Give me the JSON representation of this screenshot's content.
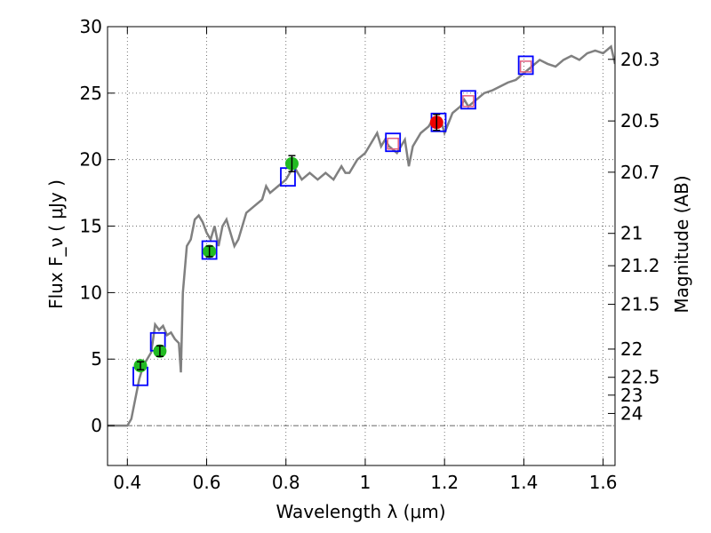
{
  "chart_data": {
    "type": "line",
    "xlabel": "Wavelength  λ (μm)",
    "ylabel": "Flux  F_ν  ( μJy )",
    "y2label": "Magnitude (AB)",
    "xlim": [
      0.35,
      1.63
    ],
    "ylim": [
      -3,
      30
    ],
    "x_ticks": [
      0.4,
      0.6,
      0.8,
      1.0,
      1.2,
      1.4,
      1.6
    ],
    "x_tick_labels": [
      "0.4",
      "0.6",
      "0.8",
      "1",
      "1.2",
      "1.4",
      "1.6"
    ],
    "y_ticks": [
      0,
      5,
      10,
      15,
      20,
      25,
      30
    ],
    "y_tick_labels": [
      "0",
      "5",
      "10",
      "15",
      "20",
      "25",
      "30"
    ],
    "y2_tick_labels": [
      "20.3",
      "20.5",
      "20.7",
      "21",
      "21.2",
      "21.5",
      "22",
      "22.5",
      "23",
      "24"
    ],
    "grid": true,
    "colors": {
      "sed": "#808080",
      "model_box": "#0000ff",
      "green": "#22bb22",
      "red": "#ee0000",
      "pink": "#e06080"
    },
    "series": [
      {
        "type": "line",
        "x": [
          0.35,
          0.38,
          0.4,
          0.41,
          0.42,
          0.43,
          0.44,
          0.45,
          0.46,
          0.465,
          0.47,
          0.48,
          0.49,
          0.5,
          0.51,
          0.52,
          0.53,
          0.535,
          0.54,
          0.55,
          0.56,
          0.57,
          0.58,
          0.59,
          0.6,
          0.61,
          0.62,
          0.63,
          0.64,
          0.65,
          0.66,
          0.67,
          0.68,
          0.7,
          0.72,
          0.74,
          0.75,
          0.76,
          0.78,
          0.8,
          0.81,
          0.82,
          0.84,
          0.86,
          0.88,
          0.9,
          0.92,
          0.94,
          0.95,
          0.96,
          0.98,
          1.0,
          1.02,
          1.03,
          1.04,
          1.05,
          1.06,
          1.08,
          1.1,
          1.11,
          1.12,
          1.14,
          1.16,
          1.17,
          1.18,
          1.19,
          1.2,
          1.22,
          1.24,
          1.25,
          1.26,
          1.28,
          1.3,
          1.32,
          1.34,
          1.36,
          1.38,
          1.4,
          1.42,
          1.44,
          1.46,
          1.48,
          1.5,
          1.52,
          1.54,
          1.56,
          1.58,
          1.6,
          1.62,
          1.63
        ],
        "y": [
          0,
          0,
          0,
          0.5,
          2.0,
          3.5,
          4.5,
          5.0,
          5.5,
          6.5,
          7.6,
          7.2,
          7.5,
          6.8,
          7.0,
          6.5,
          6.2,
          4.0,
          10.0,
          13.5,
          14.0,
          15.5,
          15.8,
          15.3,
          14.5,
          14.0,
          15.0,
          13.5,
          15.0,
          15.5,
          14.5,
          13.5,
          14.0,
          16.0,
          16.5,
          17.0,
          18.0,
          17.5,
          18.0,
          18.5,
          19.0,
          19.5,
          18.5,
          19.0,
          18.5,
          19.0,
          18.5,
          19.5,
          19.0,
          19.0,
          20.0,
          20.5,
          21.5,
          22.0,
          21.0,
          21.5,
          21.0,
          20.5,
          21.5,
          19.5,
          21.0,
          22.0,
          22.5,
          23.0,
          22.5,
          23.0,
          22.0,
          23.5,
          24.0,
          24.5,
          24.0,
          24.5,
          25.0,
          25.2,
          25.5,
          25.8,
          26.0,
          26.5,
          27.0,
          27.5,
          27.2,
          27.0,
          27.5,
          27.8,
          27.5,
          28.0,
          28.2,
          28.0,
          28.5,
          27.2
        ]
      },
      {
        "type": "model_boxes",
        "x": [
          0.433,
          0.477,
          0.607,
          0.805,
          1.07,
          1.185,
          1.26,
          1.405
        ],
        "y": [
          3.7,
          6.3,
          13.2,
          18.7,
          21.3,
          22.8,
          24.5,
          27.1
        ]
      },
      {
        "type": "observed_green",
        "x": [
          0.433,
          0.482,
          0.607,
          0.815
        ],
        "y": [
          4.5,
          5.6,
          13.1,
          19.7
        ],
        "err": [
          0.3,
          0.4,
          0.4,
          0.6
        ]
      },
      {
        "type": "observed_red",
        "x": [
          1.18
        ],
        "y": [
          22.8
        ],
        "err": [
          0.6
        ]
      },
      {
        "type": "upper_limits_pink",
        "x": [
          1.07,
          1.26,
          1.405
        ],
        "y": [
          21.2,
          24.4,
          27.0
        ]
      }
    ]
  }
}
